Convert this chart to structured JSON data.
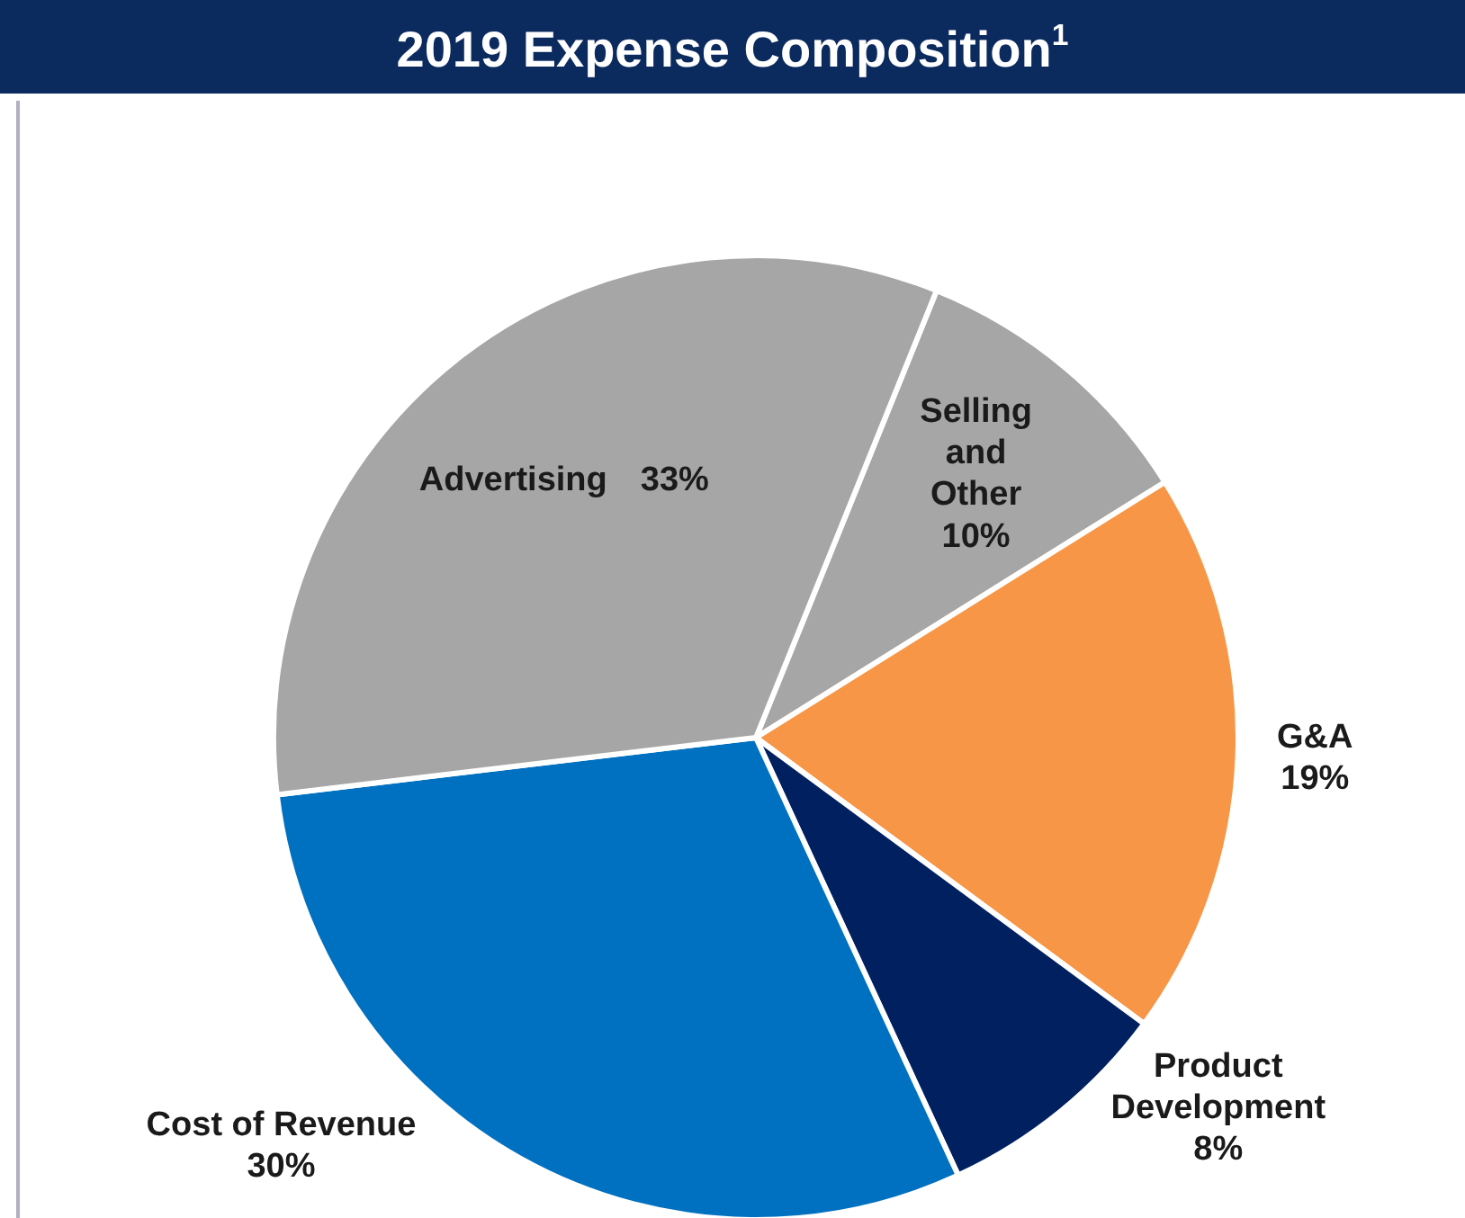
{
  "chart_data": {
    "type": "pie",
    "title": "2019 Expense Composition$^{1}$",
    "categories": [
      "Selling and Other",
      "G&A",
      "Product Development",
      "Cost of Revenue",
      "Advertising"
    ],
    "values": [
      10,
      19,
      8,
      30,
      33
    ],
    "value_labels": [
      "10%",
      "19%",
      "8%",
      "30%",
      "33%"
    ],
    "colors": [
      "#a6a6a6",
      "#f79646",
      "#002060",
      "#0070c0",
      "#a6a6a6"
    ]
  }
}
